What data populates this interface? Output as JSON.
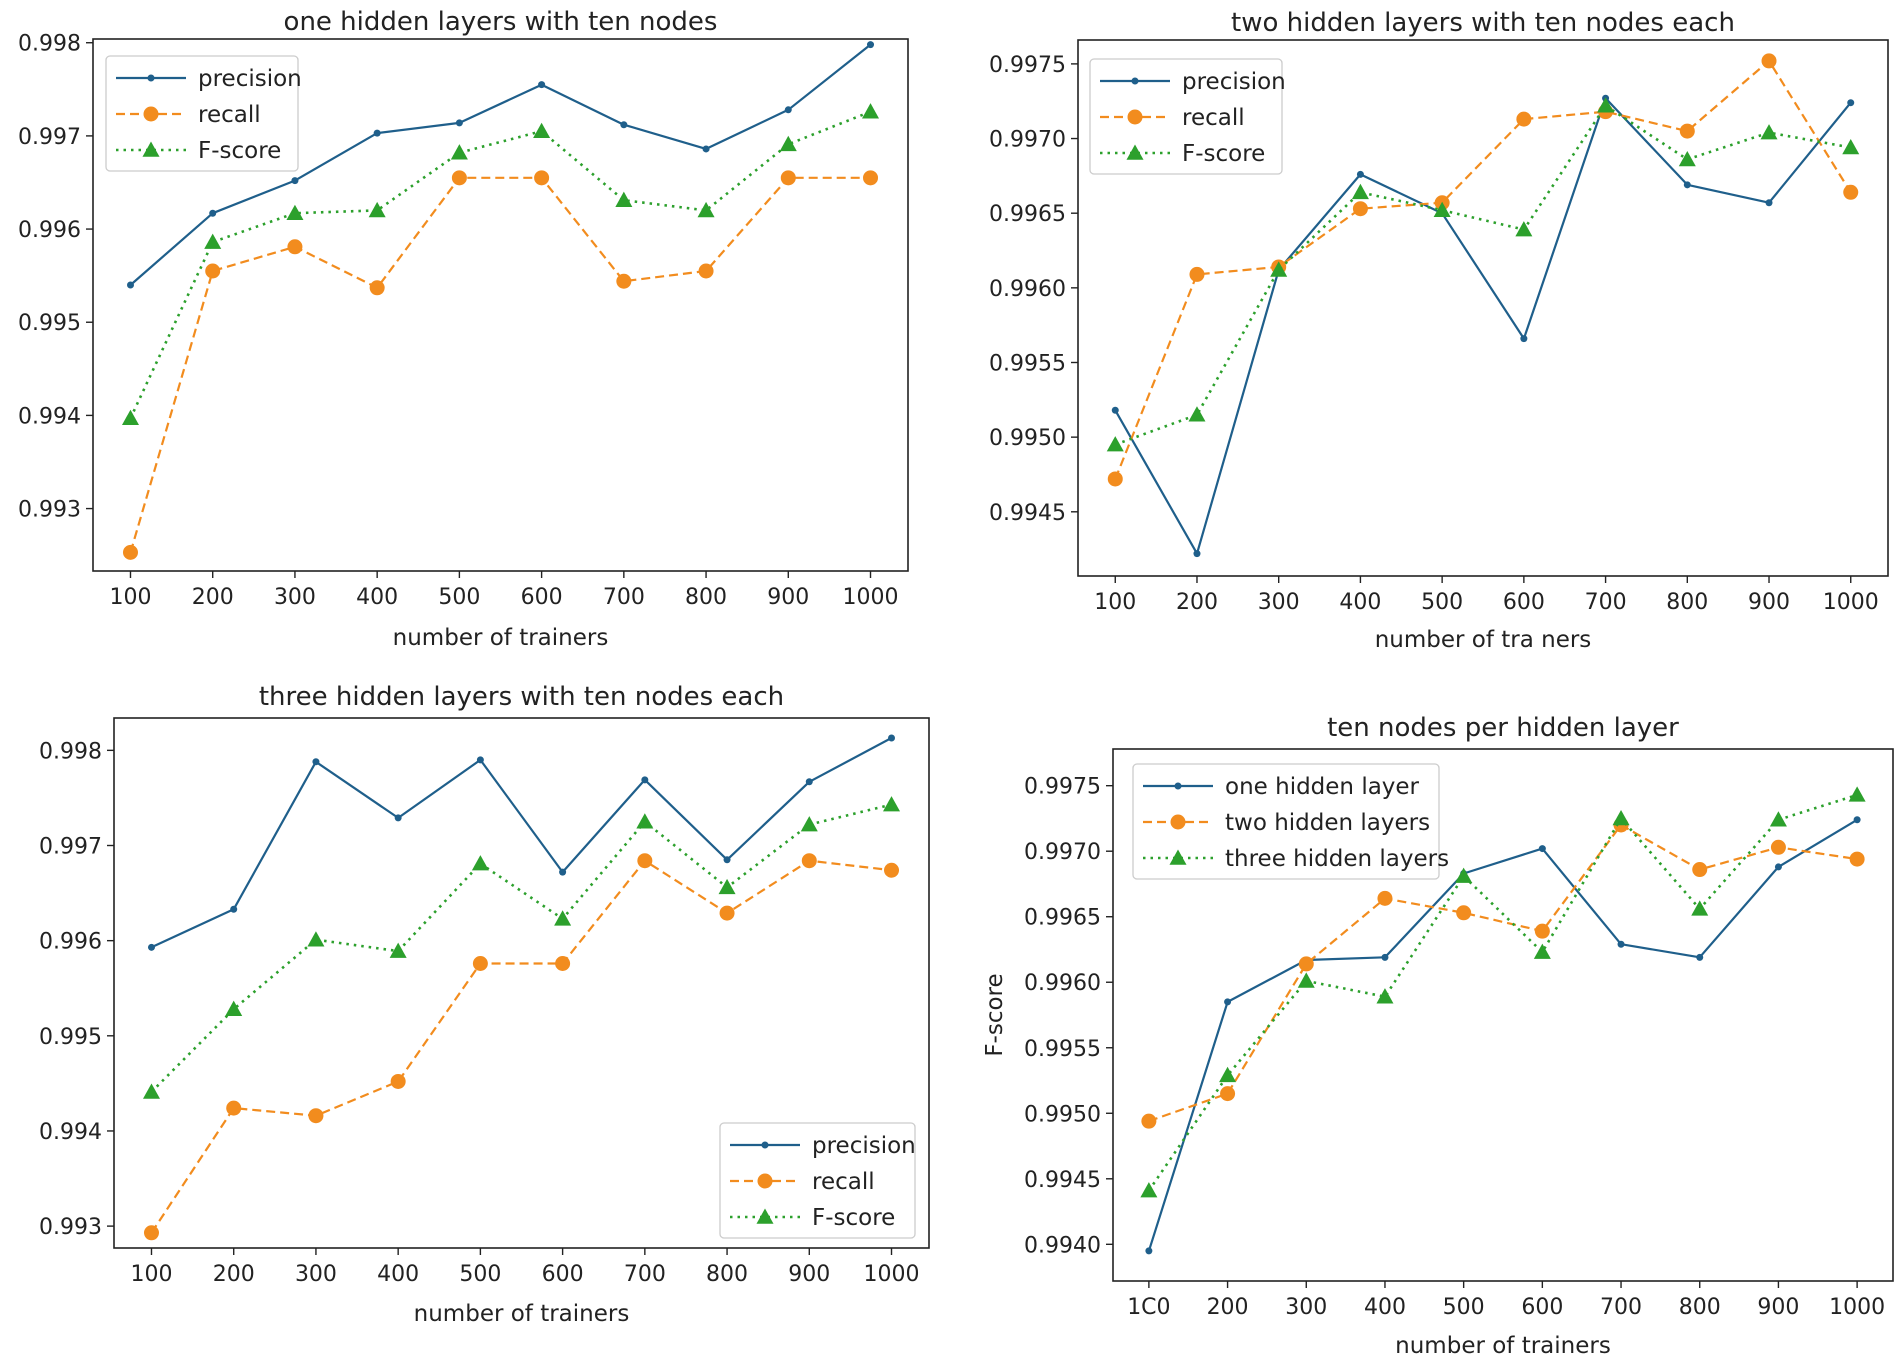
{
  "colors": {
    "blue": "#1f5f8b",
    "orange": "#f28c1e",
    "green": "#2ca02c"
  },
  "chart_data": [
    {
      "type": "line",
      "title": "one hidden layers with ten nodes",
      "xlabel": "number of trainers",
      "ylabel": "",
      "x": [
        100,
        200,
        300,
        400,
        500,
        600,
        700,
        800,
        900,
        1000
      ],
      "xticks": [
        "100",
        "200",
        "300",
        "400",
        "500",
        "600",
        "700",
        "800",
        "900",
        "1000"
      ],
      "yticks": [
        "0.993",
        "0.994",
        "0.995",
        "0.996",
        "0.997",
        "0.998"
      ],
      "ylim": [
        0.99233,
        0.99804
      ],
      "legend_position": "upper-left",
      "series": [
        {
          "name": "precision",
          "style": "solid-dot",
          "color": "#1f5f8b",
          "values": [
            0.9954,
            0.99617,
            0.99652,
            0.99703,
            0.99714,
            0.99755,
            0.99712,
            0.99686,
            0.99728,
            0.99798
          ]
        },
        {
          "name": "recall",
          "style": "dashed-circle",
          "color": "#f28c1e",
          "values": [
            0.99253,
            0.99555,
            0.99581,
            0.99537,
            0.99655,
            0.99655,
            0.99544,
            0.99555,
            0.99655,
            0.99655
          ]
        },
        {
          "name": "F-score",
          "style": "dotted-triangle",
          "color": "#2ca02c",
          "values": [
            0.99397,
            0.99586,
            0.99617,
            0.9962,
            0.99682,
            0.99705,
            0.99631,
            0.9962,
            0.99691,
            0.99726
          ]
        }
      ]
    },
    {
      "type": "line",
      "title": "two hidden layers with ten nodes each",
      "xlabel": "number of tra ners",
      "ylabel": "",
      "x": [
        100,
        200,
        300,
        400,
        500,
        600,
        700,
        800,
        900,
        1000
      ],
      "xticks": [
        "100",
        "200",
        "300",
        "400",
        "500",
        "600",
        "700",
        "800",
        "900",
        "1000"
      ],
      "yticks": [
        "0.9945",
        "0.9950",
        "0.9955",
        "0.9960",
        "0.9965",
        "0.9970",
        "0.9975"
      ],
      "ylim": [
        0.99407,
        0.99766
      ],
      "legend_position": "upper-left",
      "series": [
        {
          "name": "precision",
          "style": "solid-dot",
          "color": "#1f5f8b",
          "values": [
            0.99518,
            0.99422,
            0.99612,
            0.99676,
            0.9965,
            0.99566,
            0.99727,
            0.99669,
            0.99657,
            0.99724
          ]
        },
        {
          "name": "recall",
          "style": "dashed-circle",
          "color": "#f28c1e",
          "values": [
            0.99472,
            0.99609,
            0.99614,
            0.99653,
            0.99657,
            0.99713,
            0.99718,
            0.99705,
            0.99752,
            0.99664
          ]
        },
        {
          "name": "F-score",
          "style": "dotted-triangle",
          "color": "#2ca02c",
          "values": [
            0.99495,
            0.99515,
            0.99612,
            0.99664,
            0.99652,
            0.99639,
            0.99722,
            0.99686,
            0.99704,
            0.99694
          ]
        }
      ]
    },
    {
      "type": "line",
      "title": "three hidden layers with ten nodes each",
      "xlabel": "number of trainers",
      "ylabel": "",
      "x": [
        100,
        200,
        300,
        400,
        500,
        600,
        700,
        800,
        900,
        1000
      ],
      "xticks": [
        "100",
        "200",
        "300",
        "400",
        "500",
        "600",
        "700",
        "800",
        "900",
        "1000"
      ],
      "yticks": [
        "0.993",
        "0.994",
        "0.995",
        "0.996",
        "0.997",
        "0.998"
      ],
      "ylim": [
        0.99277,
        0.99834
      ],
      "legend_position": "lower-right",
      "series": [
        {
          "name": "precision",
          "style": "solid-dot",
          "color": "#1f5f8b",
          "values": [
            0.99593,
            0.99633,
            0.99788,
            0.99729,
            0.9979,
            0.99672,
            0.99769,
            0.99685,
            0.99767,
            0.99813
          ]
        },
        {
          "name": "recall",
          "style": "dashed-circle",
          "color": "#f28c1e",
          "values": [
            0.99293,
            0.99424,
            0.99416,
            0.99452,
            0.99576,
            0.99576,
            0.99684,
            0.99629,
            0.99684,
            0.99674
          ]
        },
        {
          "name": "F-score",
          "style": "dotted-triangle",
          "color": "#2ca02c",
          "values": [
            0.99441,
            0.99528,
            0.99601,
            0.99589,
            0.99681,
            0.99623,
            0.99725,
            0.99656,
            0.99722,
            0.99743
          ]
        }
      ]
    },
    {
      "type": "line",
      "title": "ten nodes per hidden layer",
      "xlabel": "number of trainers",
      "ylabel": "F-score",
      "x": [
        100,
        200,
        300,
        400,
        500,
        600,
        700,
        800,
        900,
        1000
      ],
      "xticks": [
        "1C0",
        "200",
        "300",
        "400",
        "500",
        "600",
        "700",
        "800",
        "900",
        "1000"
      ],
      "yticks": [
        "0.9940",
        "0.9945",
        "0.9950",
        "0.9955",
        "0.9960",
        "0.9965",
        "0.9970",
        "0.9975"
      ],
      "ylim": [
        0.99372,
        0.99778
      ],
      "legend_position": "upper-left",
      "series": [
        {
          "name": "one hidden layer",
          "style": "solid-dot",
          "color": "#1f5f8b",
          "values": [
            0.99395,
            0.99585,
            0.99617,
            0.99619,
            0.99683,
            0.99702,
            0.99629,
            0.99619,
            0.99688,
            0.99724
          ]
        },
        {
          "name": "two hidden layers",
          "style": "dashed-circle",
          "color": "#f28c1e",
          "values": [
            0.99494,
            0.99515,
            0.99614,
            0.99664,
            0.99653,
            0.99639,
            0.9972,
            0.99686,
            0.99703,
            0.99694
          ]
        },
        {
          "name": "three hidden layers",
          "style": "dotted-triangle",
          "color": "#2ca02c",
          "values": [
            0.99441,
            0.99529,
            0.99601,
            0.99589,
            0.99681,
            0.99623,
            0.99725,
            0.99656,
            0.99724,
            0.99743
          ]
        }
      ]
    }
  ]
}
